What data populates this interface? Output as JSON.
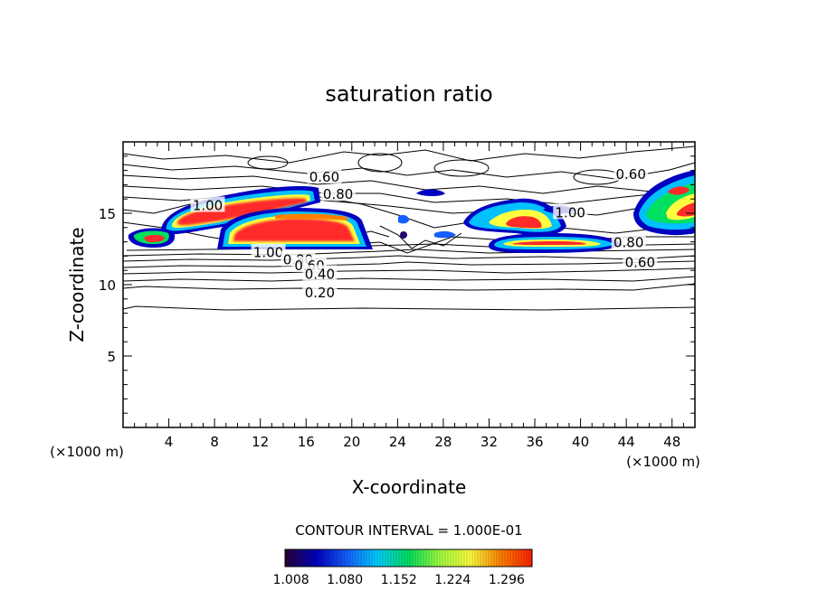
{
  "chart_data": {
    "type": "heatmap",
    "title": "saturation ratio",
    "xlabel": "X-coordinate",
    "ylabel": "Z-coordinate",
    "x_unit": "(×1000 m)",
    "y_unit": "(×1000 m)",
    "xlim": [
      0,
      50
    ],
    "ylim": [
      0,
      20
    ],
    "x_ticks": [
      "4",
      "8",
      "12",
      "16",
      "20",
      "24",
      "28",
      "32",
      "36",
      "40",
      "44",
      "48"
    ],
    "y_ticks": [
      "5",
      "10",
      "15"
    ],
    "contour_interval_label": "CONTOUR INTERVAL = 1.000E-01",
    "contour_labels": [
      {
        "text": "0.60",
        "x": 17.6,
        "z": 17.6
      },
      {
        "text": "0.80",
        "x": 18.8,
        "z": 16.4
      },
      {
        "text": "1.00",
        "x": 7.4,
        "z": 15.6
      },
      {
        "text": "1.00",
        "x": 12.7,
        "z": 12.3
      },
      {
        "text": "0.80",
        "x": 15.3,
        "z": 11.8
      },
      {
        "text": "0.60",
        "x": 16.3,
        "z": 11.4
      },
      {
        "text": "0.40",
        "x": 17.2,
        "z": 10.8
      },
      {
        "text": "0.20",
        "x": 17.2,
        "z": 9.5
      },
      {
        "text": "0.60",
        "x": 44.4,
        "z": 17.8
      },
      {
        "text": "1.00",
        "x": 39.1,
        "z": 15.1
      },
      {
        "text": "0.80",
        "x": 44.2,
        "z": 13.0
      },
      {
        "text": "0.60",
        "x": 45.2,
        "z": 11.6
      }
    ],
    "colorbar": {
      "ticks": [
        "1.008",
        "1.080",
        "1.152",
        "1.224",
        "1.296"
      ],
      "range": [
        1.0,
        1.33
      ],
      "colors": [
        "#2a0033",
        "#0000c0",
        "#1560ff",
        "#00d0ff",
        "#00e060",
        "#a0ff40",
        "#ffff40",
        "#ff8000",
        "#ff2000"
      ]
    },
    "supersaturated_regions": [
      {
        "x": [
          2.5,
          16.5
        ],
        "z": [
          13.8,
          16.5
        ]
      },
      {
        "x": [
          8.5,
          21.5
        ],
        "z": [
          12.3,
          15.6
        ]
      },
      {
        "x": [
          0.2,
          4.5
        ],
        "z": [
          12.5,
          14.0
        ]
      },
      {
        "x": [
          29.5,
          39.5
        ],
        "z": [
          13.0,
          16.0
        ]
      },
      {
        "x": [
          31.0,
          43.5
        ],
        "z": [
          12.3,
          13.6
        ]
      },
      {
        "x": [
          45.5,
          50.0
        ],
        "z": [
          14.0,
          17.5
        ]
      }
    ]
  }
}
